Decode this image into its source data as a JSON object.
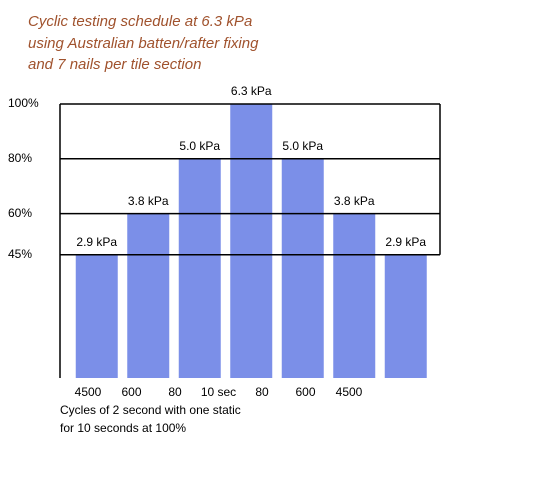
{
  "chart_data": {
    "type": "bar",
    "title": [
      "Cyclic testing schedule at 6.3 kPa",
      "using Australian batten/rafter fixing",
      "and 7 nails per tile section"
    ],
    "categories": [
      "4500",
      "600",
      "80",
      "10 sec",
      "80",
      "600",
      "4500"
    ],
    "values": [
      45,
      60,
      80,
      100,
      80,
      60,
      45
    ],
    "annotations": [
      "2.9 kPa",
      "3.8 kPa",
      "5.0 kPa",
      "6.3 kPa",
      "5.0 kPa",
      "3.8 kPa",
      "2.9 kPa"
    ],
    "color": "#7b8fe8",
    "ylim": [
      0,
      100
    ],
    "yticks": [
      {
        "value": 45,
        "label": "45%"
      },
      {
        "value": 60,
        "label": "60%"
      },
      {
        "value": 80,
        "label": "80%"
      },
      {
        "value": 100,
        "label": "100%"
      }
    ],
    "grid": true,
    "x_label": [
      "Cycles of 2 second with one static",
      "for 10 seconds at 100%"
    ]
  }
}
